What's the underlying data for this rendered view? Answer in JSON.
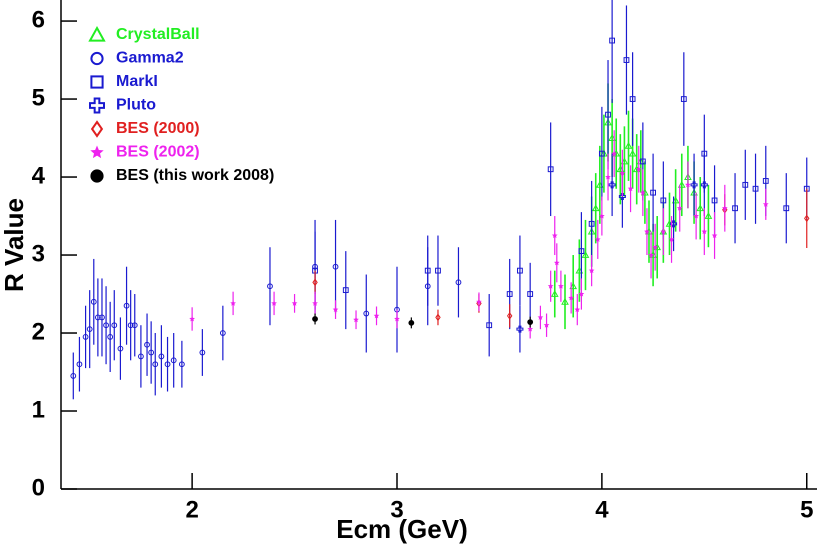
{
  "chart_data": {
    "type": "scatter",
    "x_label": "Ecm (GeV)",
    "y_label": "R Value",
    "xlim": [
      1.36,
      5.05
    ],
    "ylim": [
      0,
      6.27
    ],
    "xticks": [
      2,
      3,
      4,
      5
    ],
    "yticks": [
      0,
      1,
      2,
      3,
      4,
      5,
      6
    ],
    "legend": "top-left",
    "series": [
      {
        "name": "CrystalBall",
        "color": "#22ee22",
        "marker": "triangle",
        "x": [
          3.77,
          3.82,
          3.86,
          3.89,
          3.92,
          3.95,
          3.97,
          3.99,
          4.01,
          4.03,
          4.05,
          4.07,
          4.09,
          4.11,
          4.13,
          4.15,
          4.17,
          4.19,
          4.21,
          4.23,
          4.25,
          4.27,
          4.3,
          4.33,
          4.36,
          4.39,
          4.42,
          4.45,
          4.48,
          4.52
        ],
        "values": [
          2.5,
          2.4,
          2.6,
          2.8,
          3.0,
          3.3,
          3.6,
          3.9,
          4.3,
          4.7,
          4.5,
          4.3,
          4.1,
          4.2,
          4.4,
          4.3,
          4.1,
          4.2,
          3.8,
          3.3,
          3.0,
          3.1,
          3.3,
          3.4,
          3.7,
          3.9,
          4.0,
          3.8,
          3.6,
          3.5
        ],
        "errors": [
          0.3,
          0.35,
          0.4,
          0.4,
          0.45,
          0.45,
          0.45,
          0.5,
          0.5,
          0.5,
          0.5,
          0.45,
          0.45,
          0.45,
          0.45,
          0.45,
          0.45,
          0.4,
          0.4,
          0.4,
          0.4,
          0.4,
          0.4,
          0.4,
          0.4,
          0.4,
          0.4,
          0.4,
          0.4,
          0.4
        ]
      },
      {
        "name": "Gamma2",
        "color": "#1a1ad0",
        "marker": "circle",
        "x": [
          1.42,
          1.45,
          1.48,
          1.5,
          1.52,
          1.54,
          1.56,
          1.58,
          1.6,
          1.62,
          1.65,
          1.68,
          1.7,
          1.72,
          1.75,
          1.78,
          1.8,
          1.82,
          1.85,
          1.88,
          1.91,
          1.95,
          2.05,
          2.15,
          2.38,
          2.6,
          2.7,
          2.85,
          3.0,
          3.15,
          3.3
        ],
        "values": [
          1.45,
          1.6,
          1.95,
          2.05,
          2.4,
          2.2,
          2.2,
          2.1,
          1.95,
          2.1,
          1.8,
          2.35,
          2.1,
          2.1,
          1.7,
          1.85,
          1.75,
          1.6,
          1.7,
          1.6,
          1.65,
          1.6,
          1.75,
          2.0,
          2.6,
          2.85,
          2.85,
          2.25,
          2.3,
          2.6,
          2.65
        ],
        "errors": [
          0.3,
          0.35,
          0.4,
          0.5,
          0.55,
          0.5,
          0.5,
          0.5,
          0.45,
          0.45,
          0.4,
          0.5,
          0.45,
          0.4,
          0.4,
          0.4,
          0.4,
          0.4,
          0.4,
          0.35,
          0.35,
          0.3,
          0.3,
          0.35,
          0.5,
          0.6,
          0.6,
          0.5,
          0.55,
          0.5,
          0.45
        ]
      },
      {
        "name": "MarkI",
        "color": "#1a1ad0",
        "marker": "square",
        "x": [
          2.6,
          2.75,
          3.15,
          3.2,
          3.45,
          3.55,
          3.6,
          3.65,
          3.75,
          3.9,
          3.95,
          4.0,
          4.03,
          4.05,
          4.12,
          4.15,
          4.2,
          4.25,
          4.3,
          4.4,
          4.5,
          4.55,
          4.65,
          4.7,
          4.75,
          4.8,
          4.9,
          5.0
        ],
        "values": [
          2.8,
          2.55,
          2.8,
          2.8,
          2.1,
          2.5,
          2.8,
          2.5,
          4.1,
          3.05,
          3.4,
          4.3,
          4.8,
          5.75,
          5.5,
          5.0,
          4.2,
          3.8,
          3.7,
          5.0,
          4.3,
          3.7,
          3.6,
          3.9,
          3.85,
          3.95,
          3.6,
          3.85
        ],
        "errors": [
          0.5,
          0.5,
          0.45,
          0.45,
          0.4,
          0.45,
          0.45,
          0.4,
          0.6,
          0.5,
          0.55,
          0.6,
          0.7,
          0.8,
          0.7,
          0.6,
          0.5,
          0.5,
          0.5,
          0.6,
          0.5,
          0.45,
          0.45,
          0.45,
          0.45,
          0.45,
          0.45,
          0.4
        ]
      },
      {
        "name": "Pluto",
        "color": "#1a1ad0",
        "marker": "cross",
        "x": [
          3.6,
          4.05,
          4.1,
          4.35,
          4.45,
          4.5
        ],
        "values": [
          2.05,
          3.9,
          3.75,
          3.4,
          3.9,
          3.9
        ],
        "errors": [
          0.3,
          0.4,
          0.4,
          0.35,
          0.4,
          0.4
        ]
      },
      {
        "name": "BES (2000)",
        "color": "#e02020",
        "marker": "diamond",
        "x": [
          2.6,
          3.2,
          3.4,
          3.55,
          4.6,
          5.0
        ],
        "values": [
          2.65,
          2.2,
          2.38,
          2.22,
          3.58,
          3.47
        ],
        "errors": [
          0.15,
          0.1,
          0.12,
          0.15,
          0.2,
          0.38
        ]
      },
      {
        "name": "BES (2002)",
        "color": "#ee22ee",
        "marker": "star",
        "x": [
          2.0,
          2.2,
          2.4,
          2.5,
          2.6,
          2.7,
          2.8,
          2.9,
          3.0,
          3.4,
          3.65,
          3.7,
          3.73,
          3.75,
          3.77,
          3.78,
          3.8,
          3.85,
          3.88,
          3.9,
          3.95,
          3.98,
          4.0,
          4.03,
          4.06,
          4.1,
          4.14,
          4.18,
          4.2,
          4.22,
          4.24,
          4.26,
          4.3,
          4.34,
          4.38,
          4.42,
          4.46,
          4.5,
          4.55,
          4.6,
          4.8
        ],
        "values": [
          2.18,
          2.38,
          2.38,
          2.38,
          2.38,
          2.3,
          2.17,
          2.22,
          2.18,
          2.4,
          2.05,
          2.2,
          2.1,
          2.6,
          3.25,
          2.9,
          2.6,
          2.45,
          2.3,
          2.5,
          2.8,
          3.2,
          3.5,
          4.0,
          4.3,
          4.05,
          3.85,
          4.1,
          3.8,
          3.3,
          3.0,
          3.1,
          3.3,
          3.2,
          3.6,
          3.9,
          3.5,
          3.3,
          3.25,
          3.6,
          3.65
        ],
        "errors": [
          0.15,
          0.15,
          0.15,
          0.12,
          0.15,
          0.12,
          0.12,
          0.12,
          0.12,
          0.12,
          0.12,
          0.15,
          0.15,
          0.2,
          0.25,
          0.25,
          0.2,
          0.2,
          0.2,
          0.2,
          0.2,
          0.25,
          0.25,
          0.3,
          0.3,
          0.3,
          0.3,
          0.3,
          0.3,
          0.3,
          0.3,
          0.3,
          0.3,
          0.3,
          0.3,
          0.3,
          0.3,
          0.3,
          0.3,
          0.3,
          0.2
        ]
      },
      {
        "name": "BES (this work 2008)",
        "color": "#000000",
        "marker": "dot",
        "x": [
          2.6,
          3.07,
          3.65
        ],
        "values": [
          2.18,
          2.13,
          2.14
        ],
        "errors": [
          0.07,
          0.07,
          0.07
        ]
      }
    ]
  }
}
